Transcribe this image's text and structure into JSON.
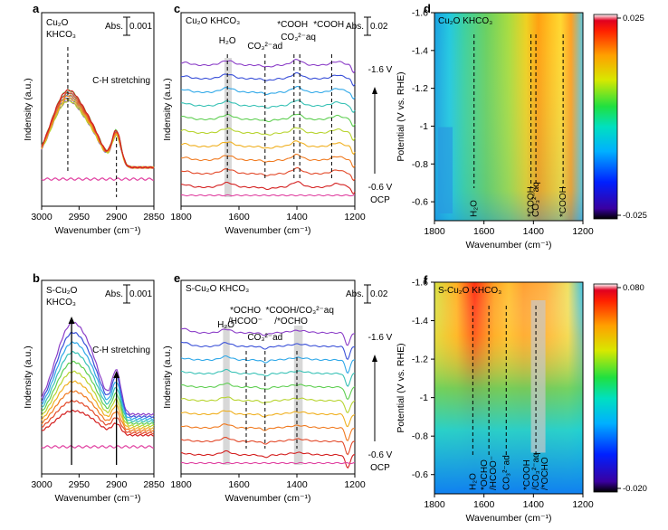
{
  "chart_data": [
    {
      "id": "a",
      "panel_label": "a",
      "type": "line",
      "title_lines": [
        "Cu₂O",
        "KHCO₃"
      ],
      "xlabel": "Wavenumber (cm⁻¹)",
      "ylabel": "Indensity (a.u.)",
      "xlim": [
        3000,
        2850
      ],
      "xticks": [
        3000,
        2950,
        2900,
        2850
      ],
      "scale_bar": "Abs. 0.001",
      "annotations": [
        "C-H stretching"
      ],
      "peak_markers": [
        2965,
        2900
      ],
      "series_colors": [
        "#8c3fc8",
        "#3a50d8",
        "#2fa8e8",
        "#39c2b6",
        "#5fcf52",
        "#b8d430",
        "#f0b020",
        "#f07a20",
        "#e34a2a",
        "#d42020",
        "#e040a0"
      ]
    },
    {
      "id": "b",
      "panel_label": "b",
      "type": "line",
      "title_lines": [
        "S-Cu₂O",
        "KHCO₃"
      ],
      "xlabel": "Wavenumber (cm⁻¹)",
      "ylabel": "Indensity (a.u.)",
      "xlim": [
        3000,
        2850
      ],
      "xticks": [
        3000,
        2950,
        2900,
        2850
      ],
      "scale_bar": "Abs. 0.001",
      "annotations": [
        "C-H stretching"
      ],
      "peak_markers": [
        2960,
        2900
      ],
      "series_colors": [
        "#8c3fc8",
        "#3a50d8",
        "#2fa8e8",
        "#39c2b6",
        "#5fcf52",
        "#b8d430",
        "#f0b020",
        "#f07a20",
        "#e34a2a",
        "#d42020",
        "#e040a0"
      ]
    },
    {
      "id": "c",
      "panel_label": "c",
      "type": "line",
      "title": "Cu₂O KHCO₃",
      "xlabel": "Wavenumber (cm⁻¹)",
      "ylabel": "Indensity (a.u.)",
      "xlim": [
        1800,
        1200
      ],
      "xticks": [
        1800,
        1600,
        1400,
        1200
      ],
      "scale_bar": "Abs. 0.02",
      "potential_top": "-1.6 V",
      "potential_bottom": "-0.6 V",
      "ocp_label": "OCP",
      "peak_labels": [
        {
          "text": "H₂O",
          "x": 1640
        },
        {
          "text": "CO₃²⁻ad",
          "x": 1510
        },
        {
          "text": "*COOH",
          "x": 1410
        },
        {
          "text": "CO₃²⁻aq",
          "x": 1390
        },
        {
          "text": "*COOH",
          "x": 1280
        }
      ],
      "series_colors": [
        "#8c3fc8",
        "#3a50d8",
        "#2fa8e8",
        "#39c2b6",
        "#5fcf52",
        "#b8d430",
        "#f0b020",
        "#f07a20",
        "#e34a2a",
        "#d42020",
        "#e040a0"
      ]
    },
    {
      "id": "e",
      "panel_label": "e",
      "type": "line",
      "title": "S-Cu₂O KHCO₃",
      "xlabel": "Wavenumber (cm⁻¹)",
      "ylabel": "Indensity (a.u.)",
      "xlim": [
        1800,
        1200
      ],
      "xticks": [
        1800,
        1600,
        1400,
        1200
      ],
      "scale_bar": "Abs. 0.02",
      "potential_top": "-1.6 V",
      "potential_bottom": "-0.6 V",
      "ocp_label": "OCP",
      "peak_labels": [
        {
          "text": "H₂O",
          "x": 1645
        },
        {
          "text": "*OCHO /HCOO⁻",
          "x": 1575
        },
        {
          "text": "CO₃²⁻ad",
          "x": 1510
        },
        {
          "text": "*COOH/CO₃²⁻aq /*OCHO",
          "x": 1400
        }
      ],
      "series_colors": [
        "#8c3fc8",
        "#3a50d8",
        "#2fa8e8",
        "#39c2b6",
        "#5fcf52",
        "#b8d430",
        "#f0b020",
        "#f07a20",
        "#e34a2a",
        "#d42020",
        "#e040a0"
      ]
    },
    {
      "id": "d",
      "panel_label": "d",
      "type": "heatmap",
      "title": "Cu₂O KHCO₃",
      "xlabel": "Wavenumber (cm⁻¹)",
      "ylabel": "Potential (V vs. RHE)",
      "xlim": [
        1800,
        1200
      ],
      "ylim": [
        -0.5,
        -1.6
      ],
      "xticks": [
        1800,
        1600,
        1400,
        1200
      ],
      "yticks": [
        -1.6,
        -1.4,
        -1.2,
        -1,
        -0.8,
        -0.6
      ],
      "ytick_labels": [
        "-1.6",
        "-1.4",
        "-1.2",
        "-1",
        "-0.8",
        "-0.6"
      ],
      "colorbar": {
        "max": "0.025",
        "min": "-0.025"
      },
      "peak_labels": [
        {
          "text": "H₂O",
          "x": 1640
        },
        {
          "text": "*COOH",
          "x": 1410
        },
        {
          "text": "CO₃²⁻aq",
          "x": 1390
        },
        {
          "text": "*COOH",
          "x": 1280
        }
      ]
    },
    {
      "id": "f",
      "panel_label": "f",
      "type": "heatmap",
      "title": "S-Cu₂O KHCO₃",
      "xlabel": "Wavenumber (cm⁻¹)",
      "ylabel": "Potential (V vs. RHE)",
      "xlim": [
        1800,
        1200
      ],
      "ylim": [
        -0.5,
        -1.6
      ],
      "xticks": [
        1800,
        1600,
        1400,
        1200
      ],
      "yticks": [
        -1.6,
        -1.4,
        -1.2,
        -1,
        -0.8,
        -0.6
      ],
      "ytick_labels": [
        "-1.6",
        "-1.4",
        "-1.2",
        "-1",
        "-0.8",
        "-0.6"
      ],
      "colorbar": {
        "max": "0.080",
        "min": "-0.020"
      },
      "peak_labels": [
        {
          "text": "H₂O",
          "x": 1645
        },
        {
          "text": "*OCHO /HCOO⁻",
          "x": 1580
        },
        {
          "text": "CO₃²⁻ad",
          "x": 1510
        },
        {
          "text": "*COOH /CO₃²⁻aq /*OCHO",
          "x": 1390
        }
      ]
    }
  ]
}
